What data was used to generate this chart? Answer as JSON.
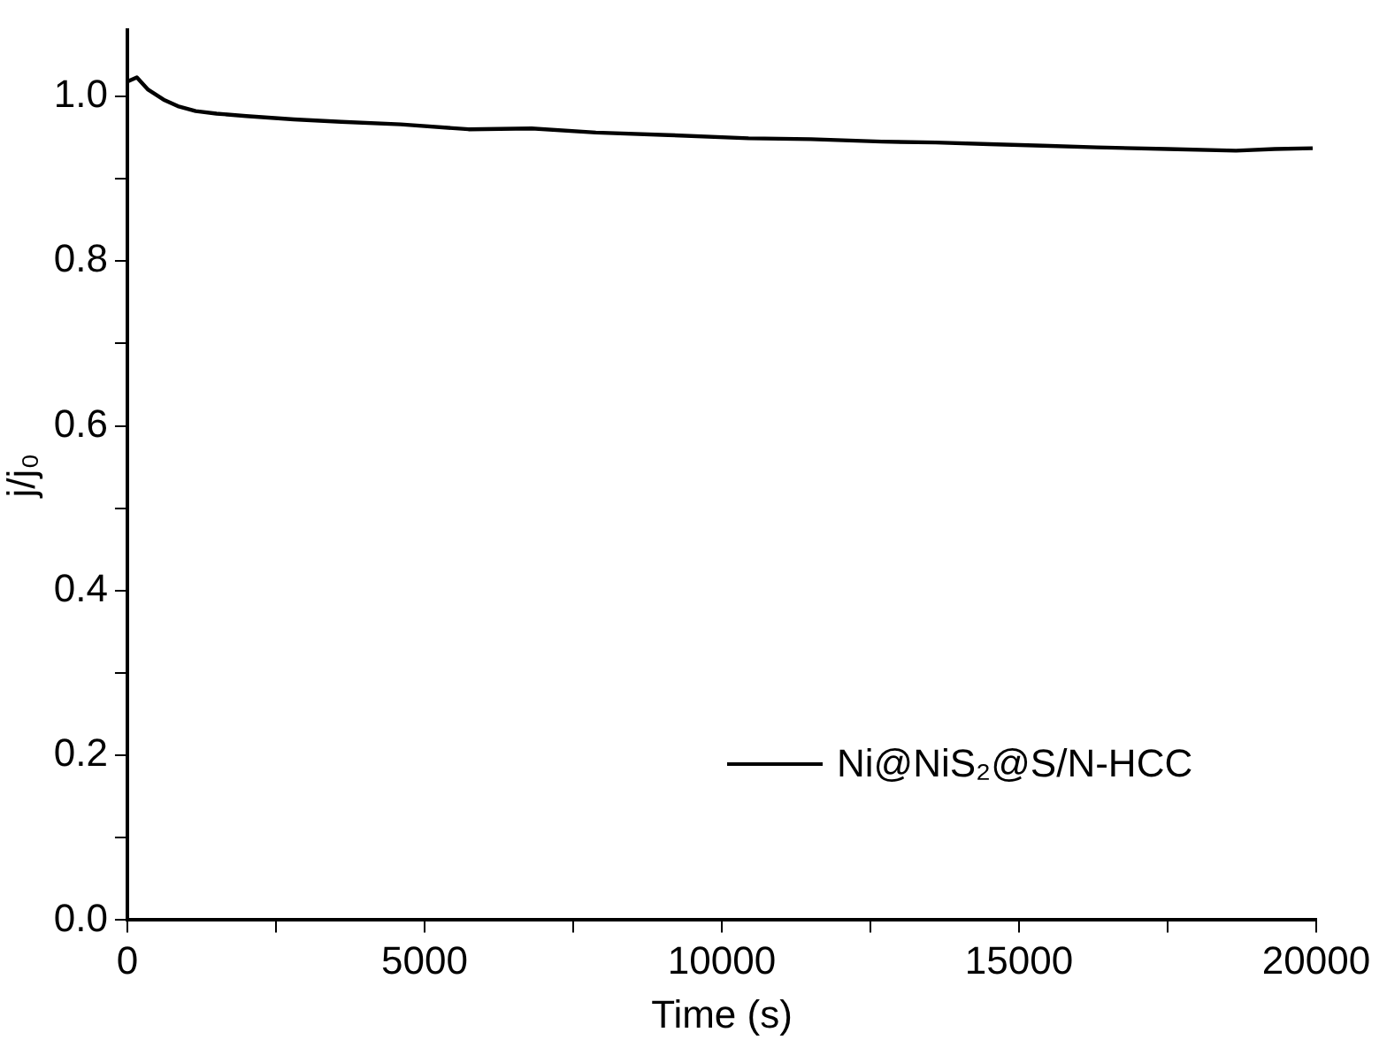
{
  "chart_data": {
    "type": "line",
    "xlabel": "Time (s)",
    "ylabel": "j/j₀",
    "x": [
      0,
      160,
      350,
      610,
      850,
      1150,
      1500,
      2000,
      2800,
      3600,
      4600,
      5740,
      6800,
      7880,
      9100,
      10450,
      11500,
      12690,
      13600,
      14500,
      15400,
      16310,
      17500,
      18650,
      19300,
      19940
    ],
    "series": [
      {
        "name": "Ni@NiS₂@S/N-HCC",
        "color": "#000000",
        "values": [
          1.018,
          1.023,
          1.008,
          0.996,
          0.988,
          0.982,
          0.979,
          0.976,
          0.972,
          0.969,
          0.966,
          0.96,
          0.961,
          0.956,
          0.953,
          0.949,
          0.948,
          0.945,
          0.944,
          0.942,
          0.94,
          0.938,
          0.936,
          0.934,
          0.936,
          0.937
        ]
      }
    ],
    "xlim": [
      0,
      20000
    ],
    "xticks": [
      0,
      {
        "value": 2500,
        "label": null
      },
      5000,
      {
        "value": 7500,
        "label": null
      },
      10000,
      {
        "value": 12500,
        "label": null
      },
      15000,
      {
        "value": 17500,
        "label": null
      },
      20000
    ],
    "ylim": [
      0,
      1.08
    ],
    "yticks": [
      {
        "value": 0,
        "label": "0.0"
      },
      {
        "value": 0.1,
        "label": null
      },
      0.2,
      {
        "value": 0.3,
        "label": null
      },
      0.4,
      {
        "value": 0.5,
        "label": null
      },
      0.6,
      {
        "value": 0.7,
        "label": null
      },
      0.8,
      {
        "value": 0.9,
        "label": null
      },
      {
        "value": 1,
        "label": "1.0"
      }
    ],
    "grid": false,
    "legend": "bottom right",
    "marker": "none",
    "line_style": "solid"
  }
}
